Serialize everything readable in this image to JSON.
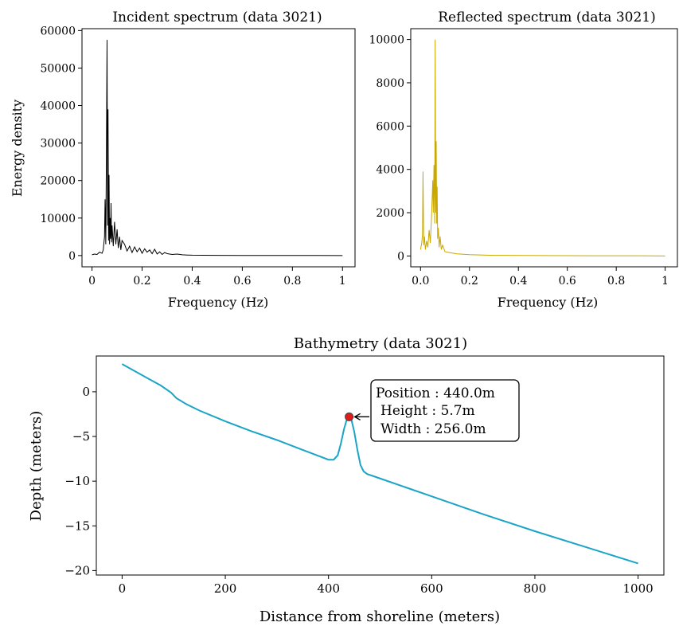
{
  "chart_data": [
    {
      "type": "line",
      "title": "Incident spectrum (data 3021)",
      "xlabel": "Frequency (Hz)",
      "ylabel": "Energy density",
      "xlim": [
        -0.04,
        1.05
      ],
      "ylim": [
        -3000,
        60500
      ],
      "xticks": [
        0,
        0.2,
        0.4,
        0.6,
        0.8,
        1
      ],
      "xtick_labels": [
        "0",
        "0.2",
        "0.4",
        "0.6",
        "0.8",
        "1"
      ],
      "yticks": [
        0,
        10000,
        20000,
        30000,
        40000,
        50000,
        60000
      ],
      "ytick_labels": [
        "0",
        "10000",
        "20000",
        "30000",
        "40000",
        "50000",
        "60000"
      ],
      "color": "#000000",
      "series": [
        {
          "x": [
            0,
            0.01,
            0.02,
            0.03,
            0.04,
            0.045,
            0.05,
            0.052,
            0.055,
            0.057,
            0.06,
            0.062,
            0.064,
            0.066,
            0.068,
            0.07,
            0.072,
            0.074,
            0.076,
            0.078,
            0.08,
            0.085,
            0.09,
            0.095,
            0.1,
            0.105,
            0.11,
            0.115,
            0.12,
            0.13,
            0.14,
            0.15,
            0.16,
            0.17,
            0.18,
            0.19,
            0.2,
            0.21,
            0.22,
            0.23,
            0.24,
            0.25,
            0.26,
            0.27,
            0.28,
            0.29,
            0.3,
            0.32,
            0.34,
            0.36,
            0.38,
            0.4,
            0.5,
            0.6,
            0.7,
            0.8,
            0.9,
            1.0
          ],
          "y": [
            200,
            400,
            300,
            900,
            600,
            1500,
            5000,
            15000,
            3000,
            22000,
            57500,
            8000,
            39000,
            4000,
            21500,
            3000,
            10000,
            4500,
            14000,
            3500,
            8000,
            2500,
            9000,
            3000,
            7000,
            2000,
            5000,
            1500,
            4000,
            3000,
            1200,
            2500,
            800,
            2300,
            1000,
            2000,
            600,
            1800,
            900,
            1500,
            500,
            1700,
            400,
            1000,
            300,
            800,
            500,
            300,
            400,
            200,
            150,
            100,
            50,
            30,
            20,
            10,
            10,
            0
          ]
        }
      ]
    },
    {
      "type": "line",
      "title": "Reflected spectrum (data 3021)",
      "xlabel": "Frequency (Hz)",
      "ylabel": "",
      "xlim": [
        -0.04,
        1.05
      ],
      "ylim": [
        -500,
        10500
      ],
      "xticks": [
        0,
        0.2,
        0.4,
        0.6,
        0.8,
        1
      ],
      "xtick_labels": [
        "0.0",
        "0.2",
        "0.4",
        "0.6",
        "0.8",
        "1"
      ],
      "yticks": [
        0,
        2000,
        4000,
        6000,
        8000,
        10000
      ],
      "ytick_labels": [
        "0",
        "2000",
        "4000",
        "6000",
        "8000",
        "10000"
      ],
      "color": "#c9a800",
      "series": [
        {
          "x": [
            0,
            0.005,
            0.008,
            0.01,
            0.013,
            0.016,
            0.02,
            0.025,
            0.03,
            0.035,
            0.04,
            0.045,
            0.05,
            0.052,
            0.055,
            0.058,
            0.06,
            0.062,
            0.064,
            0.066,
            0.068,
            0.07,
            0.073,
            0.076,
            0.08,
            0.085,
            0.09,
            0.1,
            0.12,
            0.15,
            0.2,
            0.3,
            0.5,
            0.7,
            0.9,
            1.0
          ],
          "y": [
            300,
            600,
            1000,
            3900,
            500,
            900,
            300,
            700,
            400,
            1200,
            600,
            1800,
            3500,
            2000,
            4200,
            1500,
            10000,
            2000,
            5300,
            1500,
            3200,
            800,
            1300,
            400,
            900,
            300,
            500,
            200,
            150,
            100,
            60,
            30,
            20,
            10,
            10,
            0
          ]
        }
      ]
    },
    {
      "type": "line",
      "title": "Bathymetry (data 3021)",
      "xlabel": "Distance from shoreline (meters)",
      "ylabel": "Depth (meters)",
      "xlim": [
        -50,
        1050
      ],
      "ylim": [
        -20.5,
        4
      ],
      "xticks": [
        0,
        200,
        400,
        600,
        800,
        1000
      ],
      "xtick_labels": [
        "0",
        "200",
        "400",
        "600",
        "800",
        "1000"
      ],
      "yticks": [
        0,
        -5,
        -10,
        -15,
        -20
      ],
      "ytick_labels": [
        "0",
        "−5",
        "−10",
        "−15",
        "−20"
      ],
      "color": "#1aa5c7",
      "series": [
        {
          "x": [
            0,
            25,
            50,
            75,
            95,
            105,
            125,
            150,
            200,
            250,
            300,
            350,
            400,
            410,
            418,
            424,
            430,
            436,
            440,
            444,
            450,
            456,
            462,
            468,
            475,
            490,
            550,
            600,
            700,
            800,
            900,
            1000
          ],
          "y": [
            3.1,
            2.3,
            1.5,
            0.7,
            -0.1,
            -0.7,
            -1.4,
            -2.1,
            -3.3,
            -4.4,
            -5.4,
            -6.5,
            -7.6,
            -7.6,
            -7.1,
            -5.8,
            -4.2,
            -3.0,
            -2.8,
            -3.0,
            -4.5,
            -6.5,
            -8.2,
            -8.9,
            -9.2,
            -9.5,
            -10.7,
            -11.7,
            -13.7,
            -15.6,
            -17.4,
            -19.2
          ]
        }
      ],
      "highlight_point": {
        "x": 440,
        "y": -2.8,
        "color": "#e01b1b"
      },
      "annotation_lines": [
        "Position : 440.0m",
        "Height : 5.7m",
        "Width : 256.0m"
      ]
    }
  ]
}
